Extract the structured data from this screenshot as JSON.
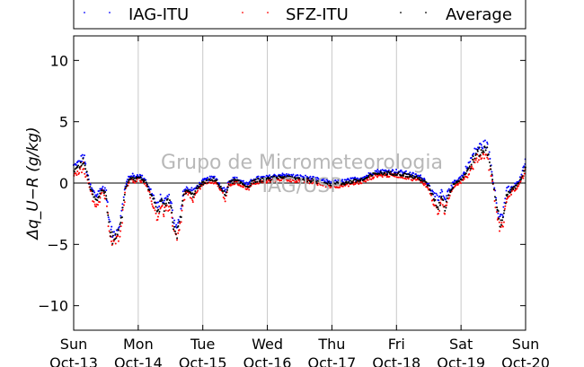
{
  "chart_data": {
    "type": "scatter",
    "title": "",
    "xlabel": "",
    "ylabel": "Δq_U−R (g/kg)",
    "ylim": [
      -12,
      12
    ],
    "xlim": [
      0,
      7
    ],
    "y_ticks": [
      -10,
      -5,
      0,
      5,
      10
    ],
    "grid": "vertical",
    "zero_line": true,
    "legend_position": "top",
    "watermark": [
      "Grupo de Micrometeorologia",
      "IAG/USP"
    ],
    "x_ticks": [
      {
        "day": 0,
        "weekday": "Sun",
        "date": "Oct-13"
      },
      {
        "day": 1,
        "weekday": "Mon",
        "date": "Oct-14"
      },
      {
        "day": 2,
        "weekday": "Tue",
        "date": "Oct-15"
      },
      {
        "day": 3,
        "weekday": "Wed",
        "date": "Oct-16"
      },
      {
        "day": 4,
        "weekday": "Thu",
        "date": "Oct-17"
      },
      {
        "day": 5,
        "weekday": "Fri",
        "date": "Oct-18"
      },
      {
        "day": 6,
        "weekday": "Sat",
        "date": "Oct-19"
      },
      {
        "day": 7,
        "weekday": "Sun",
        "date": "Oct-20"
      }
    ],
    "series": [
      {
        "name": "IAG-ITU",
        "color": "#0000ff",
        "offset": 0.35
      },
      {
        "name": "SFZ-ITU",
        "color": "#ff0000",
        "offset": -0.35
      },
      {
        "name": "Average",
        "color": "#000000",
        "offset": 0.0
      }
    ],
    "base_curve_x_days": [
      0.0,
      0.08,
      0.15,
      0.2,
      0.25,
      0.3,
      0.35,
      0.4,
      0.45,
      0.5,
      0.55,
      0.6,
      0.7,
      0.75,
      0.8,
      0.85,
      0.9,
      0.95,
      1.0,
      1.1,
      1.2,
      1.3,
      1.35,
      1.4,
      1.45,
      1.5,
      1.55,
      1.6,
      1.65,
      1.7,
      1.75,
      1.8,
      1.85,
      1.9,
      2.0,
      2.1,
      2.2,
      2.25,
      2.3,
      2.35,
      2.4,
      2.5,
      2.6,
      2.7,
      2.8,
      3.0,
      3.2,
      3.4,
      3.6,
      3.8,
      4.0,
      4.2,
      4.4,
      4.5,
      4.6,
      4.7,
      4.8,
      4.9,
      5.0,
      5.2,
      5.4,
      5.5,
      5.6,
      5.65,
      5.7,
      5.75,
      5.8,
      5.85,
      5.9,
      6.0,
      6.1,
      6.2,
      6.25,
      6.3,
      6.35,
      6.4,
      6.45,
      6.5,
      6.55,
      6.6,
      6.65,
      6.7,
      6.8,
      6.9,
      7.0
    ],
    "base_curve_y": [
      1.0,
      1.3,
      1.8,
      0.8,
      -0.2,
      -1.0,
      -1.5,
      -1.0,
      -0.5,
      -1.0,
      -3.5,
      -4.6,
      -4.0,
      -2.5,
      -0.5,
      0.3,
      0.5,
      0.3,
      0.5,
      0.2,
      -1.0,
      -2.5,
      -1.5,
      -2.0,
      -1.5,
      -1.8,
      -3.5,
      -4.2,
      -3.0,
      -1.0,
      -0.6,
      -0.8,
      -1.0,
      -0.5,
      0.0,
      0.2,
      0.3,
      -0.2,
      -0.6,
      -1.0,
      0.0,
      0.2,
      0.0,
      -0.3,
      0.2,
      0.3,
      0.5,
      0.4,
      0.3,
      0.1,
      -0.1,
      0.0,
      0.2,
      0.3,
      0.6,
      0.8,
      0.8,
      0.8,
      0.8,
      0.6,
      0.3,
      -0.3,
      -1.5,
      -2.0,
      -1.0,
      -2.0,
      -1.0,
      -0.5,
      0.0,
      0.3,
      1.0,
      2.0,
      2.4,
      2.6,
      2.7,
      2.8,
      1.5,
      0.0,
      -2.0,
      -3.2,
      -3.0,
      -1.0,
      -0.5,
      0.0,
      1.4
    ]
  }
}
